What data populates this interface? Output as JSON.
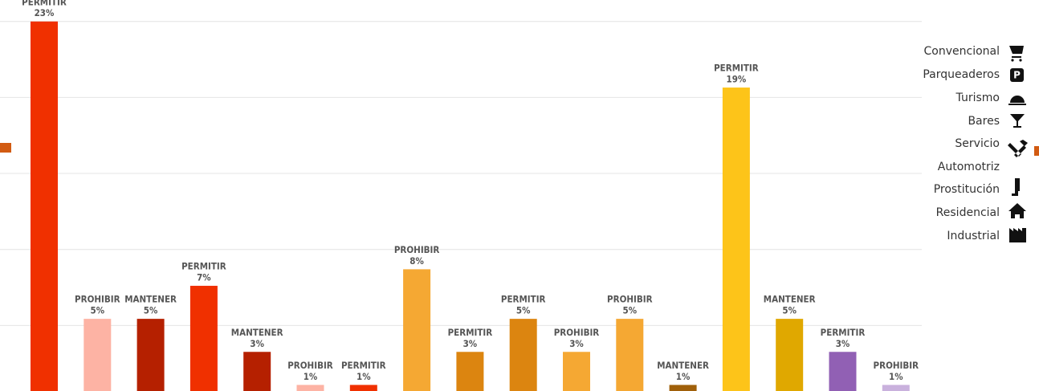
{
  "chart_data": {
    "type": "bar",
    "categories": [
      null,
      null,
      null,
      null,
      null,
      null,
      null,
      null,
      null,
      null,
      null,
      null,
      null,
      null,
      null,
      null,
      null
    ],
    "bar_labels": [
      "PERMITIR",
      "PROHIBIR",
      "MANTENER",
      "PERMITIR",
      "MANTENER",
      "PROHIBIR",
      "PERMITIR",
      "PROHIBIR",
      "PERMITIR",
      "PERMITIR",
      "PROHIBIR",
      "PROHIBIR",
      "MANTENER",
      "PERMITIR",
      "MANTENER",
      "PERMITIR",
      "PROHIBIR"
    ],
    "values": [
      23,
      5,
      5,
      7,
      3,
      1,
      1,
      8,
      3,
      5,
      3,
      5,
      1,
      19,
      5,
      3,
      1
    ],
    "value_labels": [
      "23%",
      "5%",
      "5%",
      "7%",
      "3%",
      "1%",
      "1%",
      "8%",
      "3%",
      "5%",
      "3%",
      "5%",
      "1%",
      "19%",
      "5%",
      "3%",
      "1%"
    ],
    "colors": [
      "#f03000",
      "#fdb3a4",
      "#b52000",
      "#f03000",
      "#b52000",
      "#fdb3a4",
      "#f03000",
      "#f5a833",
      "#dc8510",
      "#dc8510",
      "#f5a833",
      "#f5a833",
      "#a0600a",
      "#fdc419",
      "#e0a800",
      "#9160b4",
      "#c9b1dd"
    ],
    "ylim": [
      0,
      24.3
    ],
    "yticks": [
      4.6,
      9.2,
      13.8,
      18.4,
      23
    ],
    "grid": true,
    "legend": [
      {
        "lines": [
          "Convencional"
        ]
      },
      {
        "lines": [
          "Parqueaderos"
        ]
      },
      {
        "lines": [
          "Turismo"
        ]
      },
      {
        "lines": [
          "Bares"
        ]
      },
      {
        "lines": [
          "Servicio",
          "Automotriz"
        ]
      },
      {
        "lines": [
          "Prostitución"
        ]
      },
      {
        "lines": [
          "Residencial"
        ]
      },
      {
        "lines": [
          "Industrial"
        ]
      }
    ]
  }
}
